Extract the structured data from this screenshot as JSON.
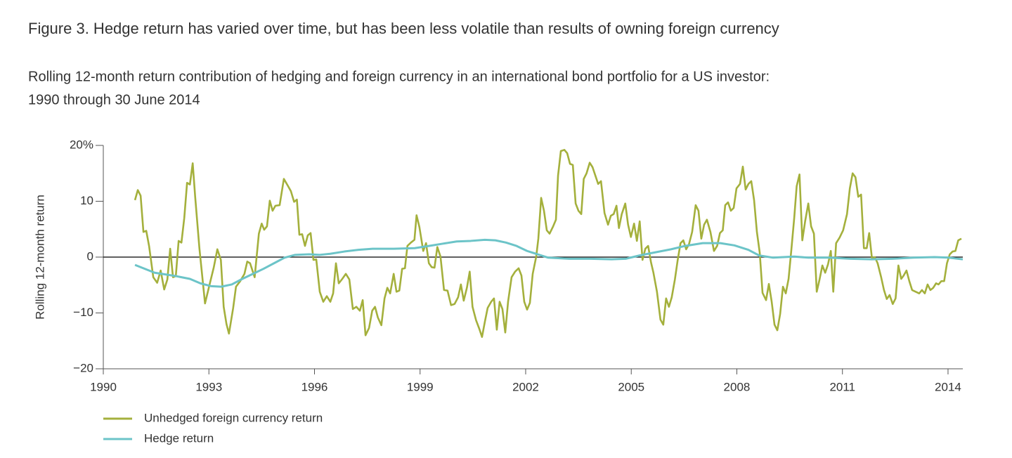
{
  "chart_data": {
    "type": "line",
    "title": "Figure 3. Hedge return has varied over time, but has been less volatile than results of owning foreign currency",
    "subtitle": [
      "Rolling 12-month return contribution of hedging and foreign currency in an international bond portfolio for a US investor:",
      "1990 through 30 June 2014"
    ],
    "y_label": "Rolling 12-month return",
    "xlim": [
      1990,
      2014.42
    ],
    "xticks": [
      1990,
      1993,
      1996,
      1999,
      2002,
      2005,
      2008,
      2011,
      2014
    ],
    "ylim": [
      -20,
      20
    ],
    "yticks": [
      {
        "value": -20,
        "label": "−20"
      },
      {
        "value": -10,
        "label": "−10"
      },
      0,
      10,
      {
        "value": 20,
        "label": "20%"
      }
    ],
    "x": [
      1990.9,
      1990.98,
      1991.06,
      1991.14,
      1991.22,
      1991.3,
      1991.42,
      1991.53,
      1991.63,
      1991.73,
      1991.82,
      1991.9,
      1991.98,
      1992.06,
      1992.14,
      1992.22,
      1992.3,
      1992.38,
      1992.46,
      1992.54,
      1992.61,
      1992.73,
      1992.89,
      1993.02,
      1993.14,
      1993.24,
      1993.34,
      1993.42,
      1993.5,
      1993.57,
      1993.69,
      1993.77,
      1993.89,
      1994.01,
      1994.09,
      1994.17,
      1994.3,
      1994.42,
      1994.5,
      1994.57,
      1994.65,
      1994.73,
      1994.81,
      1994.89,
      1995.01,
      1995.13,
      1995.25,
      1995.33,
      1995.42,
      1995.5,
      1995.57,
      1995.65,
      1995.73,
      1995.81,
      1995.89,
      1995.97,
      1996.05,
      1996.15,
      1996.25,
      1996.35,
      1996.45,
      1996.53,
      1996.61,
      1996.69,
      1996.79,
      1996.89,
      1996.99,
      1997.09,
      1997.19,
      1997.29,
      1997.37,
      1997.45,
      1997.55,
      1997.64,
      1997.72,
      1997.8,
      1997.9,
      1997.99,
      1998.07,
      1998.15,
      1998.25,
      1998.33,
      1998.41,
      1998.49,
      1998.57,
      1998.64,
      1998.74,
      1998.84,
      1998.9,
      1998.98,
      1999.09,
      1999.17,
      1999.25,
      1999.33,
      1999.41,
      1999.49,
      1999.58,
      1999.68,
      1999.78,
      1999.88,
      1999.98,
      2000.08,
      2000.16,
      2000.24,
      2000.33,
      2000.41,
      2000.49,
      2000.59,
      2000.68,
      2000.76,
      2000.84,
      2000.92,
      2001.02,
      2001.1,
      2001.18,
      2001.26,
      2001.34,
      2001.42,
      2001.5,
      2001.6,
      2001.7,
      2001.8,
      2001.88,
      2001.96,
      2002.04,
      2002.12,
      2002.2,
      2002.3,
      2002.36,
      2002.44,
      2002.52,
      2002.6,
      2002.68,
      2002.78,
      2002.86,
      2002.92,
      2003.0,
      2003.1,
      2003.18,
      2003.26,
      2003.34,
      2003.42,
      2003.5,
      2003.58,
      2003.65,
      2003.73,
      2003.82,
      2003.9,
      2003.98,
      2004.06,
      2004.14,
      2004.24,
      2004.34,
      2004.42,
      2004.5,
      2004.58,
      2004.65,
      2004.73,
      2004.83,
      2004.91,
      2004.99,
      2005.08,
      2005.16,
      2005.24,
      2005.32,
      2005.4,
      2005.48,
      2005.56,
      2005.63,
      2005.73,
      2005.83,
      2005.91,
      2005.99,
      2006.07,
      2006.15,
      2006.24,
      2006.32,
      2006.4,
      2006.48,
      2006.56,
      2006.64,
      2006.73,
      2006.83,
      2006.91,
      2006.99,
      2007.07,
      2007.15,
      2007.25,
      2007.35,
      2007.44,
      2007.52,
      2007.6,
      2007.67,
      2007.75,
      2007.83,
      2007.91,
      2007.99,
      2008.09,
      2008.17,
      2008.25,
      2008.33,
      2008.41,
      2008.49,
      2008.57,
      2008.65,
      2008.73,
      2008.83,
      2008.91,
      2008.99,
      2009.07,
      2009.15,
      2009.23,
      2009.31,
      2009.39,
      2009.47,
      2009.55,
      2009.63,
      2009.7,
      2009.78,
      2009.86,
      2009.94,
      2010.03,
      2010.11,
      2010.19,
      2010.27,
      2010.35,
      2010.43,
      2010.51,
      2010.59,
      2010.67,
      2010.74,
      2010.82,
      2010.92,
      2011.02,
      2011.13,
      2011.21,
      2011.29,
      2011.37,
      2011.45,
      2011.53,
      2011.61,
      2011.69,
      2011.76,
      2011.84,
      2011.92,
      2012.0,
      2012.1,
      2012.18,
      2012.26,
      2012.34,
      2012.43,
      2012.51,
      2012.59,
      2012.67,
      2012.74,
      2012.82,
      2012.9,
      2012.98,
      2013.08,
      2013.18,
      2013.26,
      2013.34,
      2013.42,
      2013.5,
      2013.58,
      2013.66,
      2013.73,
      2013.81,
      2013.89,
      2013.97,
      2014.05,
      2014.13,
      2014.21,
      2014.29,
      2014.38
    ],
    "series": [
      {
        "name": "Unhedged foreign currency return",
        "color": "#a4b03c",
        "values": [
          10.2,
          12,
          11,
          4.5,
          4.7,
          2,
          -3.6,
          -4.6,
          -2.4,
          -5.8,
          -4,
          1.5,
          -3.6,
          -3.4,
          2.9,
          2.6,
          7,
          13.3,
          13,
          16.8,
          10.8,
          1.6,
          -8.3,
          -4.9,
          -1.8,
          1.4,
          -0.5,
          -8.9,
          -12,
          -13.7,
          -9.1,
          -5.3,
          -4.3,
          -3,
          -0.8,
          -1.1,
          -3.6,
          4.2,
          6,
          4.9,
          5.5,
          10.1,
          8.3,
          9.2,
          9.3,
          14,
          12.7,
          11.8,
          9.9,
          10.3,
          4,
          4.1,
          2,
          3.9,
          4.3,
          -0.5,
          -0.4,
          -6.2,
          -8,
          -7,
          -8,
          -6.5,
          -1.1,
          -4.7,
          -3.9,
          -3,
          -4,
          -9.3,
          -8.9,
          -9.6,
          -7.7,
          -14,
          -12.7,
          -9.6,
          -8.9,
          -10.8,
          -12.2,
          -7.4,
          -5.5,
          -6.5,
          -3,
          -6.2,
          -6,
          -2.1,
          -2,
          2,
          2.6,
          3.1,
          7.5,
          5.4,
          1.1,
          2.5,
          -1.1,
          -1.8,
          -1.9,
          1.8,
          0.1,
          -5.9,
          -6,
          -8.6,
          -8.4,
          -7.2,
          -4.9,
          -7.8,
          -5.5,
          -2.6,
          -8.9,
          -11.3,
          -12.8,
          -14.3,
          -11.6,
          -9.1,
          -8,
          -7.4,
          -13,
          -8,
          -9.3,
          -13.5,
          -8,
          -3.6,
          -2.6,
          -2,
          -3.3,
          -8,
          -9.4,
          -8.2,
          -3,
          0.1,
          3.3,
          10.6,
          8.3,
          4.8,
          4.2,
          5.5,
          6.7,
          14.6,
          19,
          19.2,
          18.6,
          16.7,
          16.5,
          9.6,
          8.3,
          7.7,
          14,
          15,
          16.9,
          16.1,
          14.6,
          13.1,
          13.6,
          7.9,
          5.8,
          7.4,
          7.7,
          9.2,
          5.2,
          7.7,
          9.6,
          5.8,
          3.6,
          6,
          2.9,
          6.4,
          -0.5,
          1.5,
          2,
          -0.9,
          -2.8,
          -6.2,
          -11.2,
          -12.1,
          -7.4,
          -8.9,
          -7.2,
          -4,
          -0.5,
          2.5,
          3,
          1.4,
          2.3,
          4.5,
          9.3,
          8.3,
          3.3,
          5.8,
          6.7,
          4.5,
          1.1,
          2,
          4.3,
          4.8,
          9.3,
          9.8,
          8.3,
          8.8,
          12.3,
          13.1,
          16.2,
          12.1,
          13.1,
          13.6,
          10.2,
          4.5,
          0.8,
          -6.4,
          -7.7,
          -4.8,
          -8,
          -12.1,
          -13.1,
          -10.2,
          -5.3,
          -6.5,
          -3.9,
          1.4,
          7,
          12.7,
          14.8,
          3,
          6.4,
          9.6,
          5.5,
          4.2,
          -6.2,
          -4,
          -1.5,
          -2.8,
          -1.3,
          1.1,
          -6.2,
          2.5,
          3.5,
          4.8,
          7.7,
          12.3,
          15,
          14.3,
          10.8,
          11.2,
          1.6,
          1.6,
          4.3,
          -0.3,
          0,
          -1.1,
          -3.6,
          -5.9,
          -7.5,
          -6.8,
          -8.4,
          -7.4,
          -1.5,
          -3.9,
          -3.3,
          -2.4,
          -4.3,
          -5.9,
          -6.2,
          -6.5,
          -5.9,
          -6.5,
          -4.9,
          -5.9,
          -5.5,
          -4.7,
          -4.9,
          -4.3,
          -4.3,
          -1.1,
          0.5,
          1,
          1.1,
          3,
          3.3
        ]
      },
      {
        "name": "Hedge return",
        "color": "#6cc4c8",
        "x": [
          1990.9,
          1991.46,
          1992.06,
          1992.46,
          1992.76,
          1993.06,
          1993.35,
          1993.65,
          1993.95,
          1994.25,
          1994.55,
          1994.85,
          1995.15,
          1995.45,
          1995.85,
          1996.15,
          1996.45,
          1996.85,
          1997.25,
          1997.65,
          1998.25,
          1998.85,
          1999.25,
          1999.64,
          2000.04,
          2000.44,
          2000.84,
          2001.14,
          2001.44,
          2001.74,
          2002.04,
          2002.34,
          2002.64,
          2003.24,
          2003.84,
          2004.44,
          2004.84,
          2005.24,
          2005.64,
          2006.13,
          2006.53,
          2007.03,
          2007.53,
          2007.93,
          2008.33,
          2008.63,
          2009.03,
          2009.63,
          2010.03,
          2010.63,
          2011.23,
          2011.83,
          2012.42,
          2013.02,
          2013.62,
          2014.02,
          2014.42
        ],
        "values": [
          -1.4,
          -2.8,
          -3.4,
          -3.9,
          -4.7,
          -5.2,
          -5.3,
          -4.9,
          -3.9,
          -3,
          -2.1,
          -1.1,
          -0.1,
          0.4,
          0.5,
          0.4,
          0.6,
          1,
          1.3,
          1.5,
          1.5,
          1.6,
          2,
          2.4,
          2.8,
          2.9,
          3.1,
          3,
          2.6,
          2,
          1.1,
          0.5,
          -0.1,
          -0.3,
          -0.3,
          -0.4,
          -0.3,
          0.3,
          0.8,
          1.4,
          2,
          2.5,
          2.5,
          2.1,
          1.3,
          0.3,
          -0.1,
          0.1,
          -0.1,
          -0.1,
          -0.3,
          -0.4,
          -0.3,
          -0.1,
          0,
          -0.1,
          -0.4
        ]
      }
    ]
  }
}
